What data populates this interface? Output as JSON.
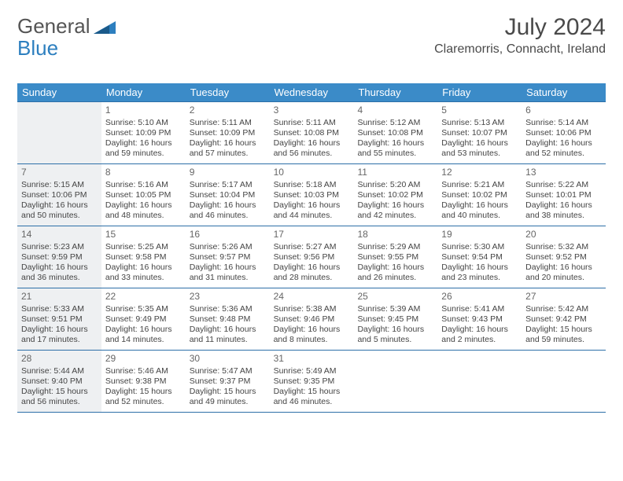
{
  "logo": {
    "word1": "General",
    "word2": "Blue"
  },
  "title": "July 2024",
  "location": "Claremorris, Connacht, Ireland",
  "colors": {
    "header_bg": "#3b8bc8",
    "header_text": "#ffffff",
    "row_border": "#2d6fa8",
    "shaded_bg": "#eef0f2",
    "body_text": "#444444"
  },
  "weekdays": [
    "Sunday",
    "Monday",
    "Tuesday",
    "Wednesday",
    "Thursday",
    "Friday",
    "Saturday"
  ],
  "weeks": [
    [
      {
        "shaded": true
      },
      {
        "day": 1,
        "sunrise": "5:10 AM",
        "sunset": "10:09 PM",
        "dl1": "16 hours",
        "dl2": "and 59 minutes."
      },
      {
        "day": 2,
        "sunrise": "5:11 AM",
        "sunset": "10:09 PM",
        "dl1": "16 hours",
        "dl2": "and 57 minutes."
      },
      {
        "day": 3,
        "sunrise": "5:11 AM",
        "sunset": "10:08 PM",
        "dl1": "16 hours",
        "dl2": "and 56 minutes."
      },
      {
        "day": 4,
        "sunrise": "5:12 AM",
        "sunset": "10:08 PM",
        "dl1": "16 hours",
        "dl2": "and 55 minutes."
      },
      {
        "day": 5,
        "sunrise": "5:13 AM",
        "sunset": "10:07 PM",
        "dl1": "16 hours",
        "dl2": "and 53 minutes."
      },
      {
        "day": 6,
        "sunrise": "5:14 AM",
        "sunset": "10:06 PM",
        "dl1": "16 hours",
        "dl2": "and 52 minutes."
      }
    ],
    [
      {
        "day": 7,
        "shaded": true,
        "sunrise": "5:15 AM",
        "sunset": "10:06 PM",
        "dl1": "16 hours",
        "dl2": "and 50 minutes."
      },
      {
        "day": 8,
        "sunrise": "5:16 AM",
        "sunset": "10:05 PM",
        "dl1": "16 hours",
        "dl2": "and 48 minutes."
      },
      {
        "day": 9,
        "sunrise": "5:17 AM",
        "sunset": "10:04 PM",
        "dl1": "16 hours",
        "dl2": "and 46 minutes."
      },
      {
        "day": 10,
        "sunrise": "5:18 AM",
        "sunset": "10:03 PM",
        "dl1": "16 hours",
        "dl2": "and 44 minutes."
      },
      {
        "day": 11,
        "sunrise": "5:20 AM",
        "sunset": "10:02 PM",
        "dl1": "16 hours",
        "dl2": "and 42 minutes."
      },
      {
        "day": 12,
        "sunrise": "5:21 AM",
        "sunset": "10:02 PM",
        "dl1": "16 hours",
        "dl2": "and 40 minutes."
      },
      {
        "day": 13,
        "sunrise": "5:22 AM",
        "sunset": "10:01 PM",
        "dl1": "16 hours",
        "dl2": "and 38 minutes."
      }
    ],
    [
      {
        "day": 14,
        "shaded": true,
        "sunrise": "5:23 AM",
        "sunset": "9:59 PM",
        "dl1": "16 hours",
        "dl2": "and 36 minutes."
      },
      {
        "day": 15,
        "sunrise": "5:25 AM",
        "sunset": "9:58 PM",
        "dl1": "16 hours",
        "dl2": "and 33 minutes."
      },
      {
        "day": 16,
        "sunrise": "5:26 AM",
        "sunset": "9:57 PM",
        "dl1": "16 hours",
        "dl2": "and 31 minutes."
      },
      {
        "day": 17,
        "sunrise": "5:27 AM",
        "sunset": "9:56 PM",
        "dl1": "16 hours",
        "dl2": "and 28 minutes."
      },
      {
        "day": 18,
        "sunrise": "5:29 AM",
        "sunset": "9:55 PM",
        "dl1": "16 hours",
        "dl2": "and 26 minutes."
      },
      {
        "day": 19,
        "sunrise": "5:30 AM",
        "sunset": "9:54 PM",
        "dl1": "16 hours",
        "dl2": "and 23 minutes."
      },
      {
        "day": 20,
        "sunrise": "5:32 AM",
        "sunset": "9:52 PM",
        "dl1": "16 hours",
        "dl2": "and 20 minutes."
      }
    ],
    [
      {
        "day": 21,
        "shaded": true,
        "sunrise": "5:33 AM",
        "sunset": "9:51 PM",
        "dl1": "16 hours",
        "dl2": "and 17 minutes."
      },
      {
        "day": 22,
        "sunrise": "5:35 AM",
        "sunset": "9:49 PM",
        "dl1": "16 hours",
        "dl2": "and 14 minutes."
      },
      {
        "day": 23,
        "sunrise": "5:36 AM",
        "sunset": "9:48 PM",
        "dl1": "16 hours",
        "dl2": "and 11 minutes."
      },
      {
        "day": 24,
        "sunrise": "5:38 AM",
        "sunset": "9:46 PM",
        "dl1": "16 hours",
        "dl2": "and 8 minutes."
      },
      {
        "day": 25,
        "sunrise": "5:39 AM",
        "sunset": "9:45 PM",
        "dl1": "16 hours",
        "dl2": "and 5 minutes."
      },
      {
        "day": 26,
        "sunrise": "5:41 AM",
        "sunset": "9:43 PM",
        "dl1": "16 hours",
        "dl2": "and 2 minutes."
      },
      {
        "day": 27,
        "sunrise": "5:42 AM",
        "sunset": "9:42 PM",
        "dl1": "15 hours",
        "dl2": "and 59 minutes."
      }
    ],
    [
      {
        "day": 28,
        "shaded": true,
        "sunrise": "5:44 AM",
        "sunset": "9:40 PM",
        "dl1": "15 hours",
        "dl2": "and 56 minutes."
      },
      {
        "day": 29,
        "sunrise": "5:46 AM",
        "sunset": "9:38 PM",
        "dl1": "15 hours",
        "dl2": "and 52 minutes."
      },
      {
        "day": 30,
        "sunrise": "5:47 AM",
        "sunset": "9:37 PM",
        "dl1": "15 hours",
        "dl2": "and 49 minutes."
      },
      {
        "day": 31,
        "sunrise": "5:49 AM",
        "sunset": "9:35 PM",
        "dl1": "15 hours",
        "dl2": "and 46 minutes."
      },
      {},
      {},
      {}
    ]
  ],
  "labels": {
    "sunrise_prefix": "Sunrise: ",
    "sunset_prefix": "Sunset: ",
    "daylight_prefix": "Daylight: "
  }
}
